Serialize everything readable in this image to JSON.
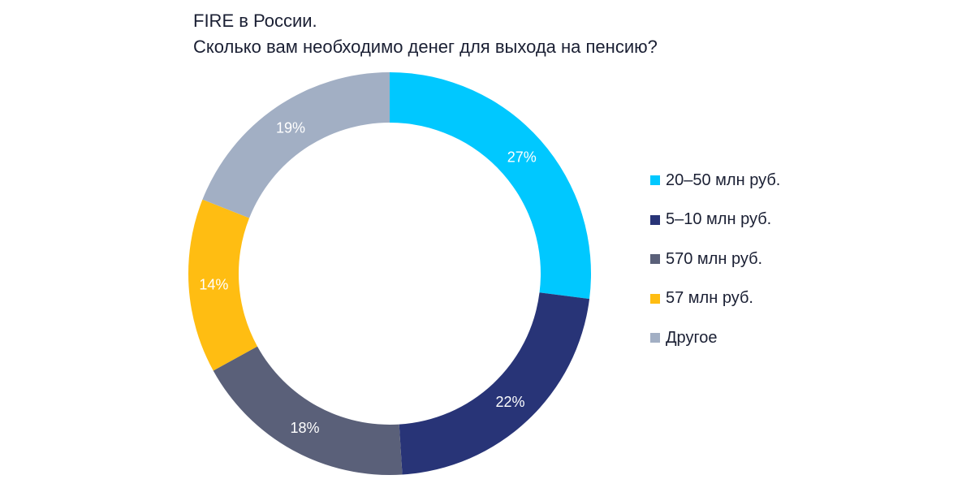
{
  "title": {
    "line1": "FIRE в России.",
    "line2": "Сколько вам необходимо денег для выхода на пенсию?"
  },
  "chart_data": {
    "type": "pie",
    "variant": "donut",
    "title": "FIRE в России. Сколько вам необходимо денег для выхода на пенсию?",
    "unit": "%",
    "start_angle_deg": 0,
    "direction": "clockwise",
    "legend_position": "right",
    "slices": [
      {
        "label": "20–50 млн руб.",
        "value": 27,
        "value_label": "27%",
        "color": "#00C8FF"
      },
      {
        "label": "5–10 млн руб.",
        "value": 22,
        "value_label": "22%",
        "color": "#283477"
      },
      {
        "label": "570 млн руб.",
        "value": 18,
        "value_label": "18%",
        "color": "#5A6079"
      },
      {
        "label": "57 млн руб.",
        "value": 14,
        "value_label": "14%",
        "color": "#FFBD12"
      },
      {
        "label": "Другое",
        "value": 19,
        "value_label": "19%",
        "color": "#A2AFC4"
      }
    ]
  }
}
